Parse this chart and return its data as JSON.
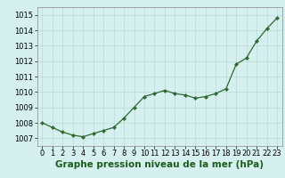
{
  "x": [
    0,
    1,
    2,
    3,
    4,
    5,
    6,
    7,
    8,
    9,
    10,
    11,
    12,
    13,
    14,
    15,
    16,
    17,
    18,
    19,
    20,
    21,
    22,
    23
  ],
  "y": [
    1008.0,
    1007.7,
    1007.4,
    1007.2,
    1007.1,
    1007.3,
    1007.5,
    1007.7,
    1008.3,
    1009.0,
    1009.7,
    1009.9,
    1010.1,
    1009.9,
    1009.8,
    1009.6,
    1009.7,
    1009.9,
    1010.2,
    1011.8,
    1012.2,
    1013.3,
    1014.1,
    1014.8
  ],
  "xlim": [
    -0.5,
    23.5
  ],
  "ylim": [
    1006.5,
    1015.5
  ],
  "yticks": [
    1007,
    1008,
    1009,
    1010,
    1011,
    1012,
    1013,
    1014,
    1015
  ],
  "xticks": [
    0,
    1,
    2,
    3,
    4,
    5,
    6,
    7,
    8,
    9,
    10,
    11,
    12,
    13,
    14,
    15,
    16,
    17,
    18,
    19,
    20,
    21,
    22,
    23
  ],
  "xlabel": "Graphe pression niveau de la mer (hPa)",
  "line_color": "#2d6a2d",
  "marker_color": "#2d6a2d",
  "bg_color": "#d6f0f0",
  "grid_color": "#b8dada",
  "xlabel_color": "#1a5c1a",
  "xlabel_fontsize": 7.5,
  "tick_fontsize": 6.0
}
